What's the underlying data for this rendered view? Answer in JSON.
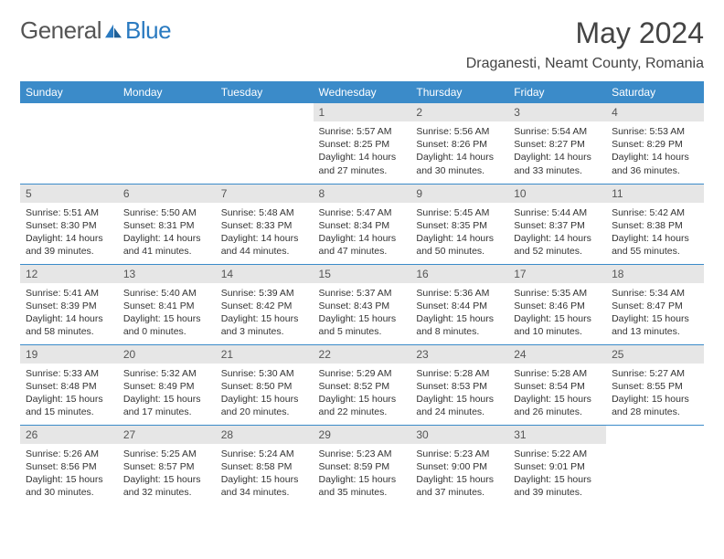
{
  "logo": {
    "text1": "General",
    "text2": "Blue"
  },
  "title": "May 2024",
  "location": "Draganesti, Neamt County, Romania",
  "colors": {
    "header_bg": "#3b8bc9",
    "daynum_bg": "#e6e6e6",
    "border": "#3b8bc9",
    "text": "#333333",
    "logo_gray": "#555555",
    "logo_blue": "#2a7ac0"
  },
  "weekdays": [
    "Sunday",
    "Monday",
    "Tuesday",
    "Wednesday",
    "Thursday",
    "Friday",
    "Saturday"
  ],
  "weeks": [
    [
      null,
      null,
      null,
      {
        "n": "1",
        "sr": "5:57 AM",
        "ss": "8:25 PM",
        "dl": "14 hours and 27 minutes."
      },
      {
        "n": "2",
        "sr": "5:56 AM",
        "ss": "8:26 PM",
        "dl": "14 hours and 30 minutes."
      },
      {
        "n": "3",
        "sr": "5:54 AM",
        "ss": "8:27 PM",
        "dl": "14 hours and 33 minutes."
      },
      {
        "n": "4",
        "sr": "5:53 AM",
        "ss": "8:29 PM",
        "dl": "14 hours and 36 minutes."
      }
    ],
    [
      {
        "n": "5",
        "sr": "5:51 AM",
        "ss": "8:30 PM",
        "dl": "14 hours and 39 minutes."
      },
      {
        "n": "6",
        "sr": "5:50 AM",
        "ss": "8:31 PM",
        "dl": "14 hours and 41 minutes."
      },
      {
        "n": "7",
        "sr": "5:48 AM",
        "ss": "8:33 PM",
        "dl": "14 hours and 44 minutes."
      },
      {
        "n": "8",
        "sr": "5:47 AM",
        "ss": "8:34 PM",
        "dl": "14 hours and 47 minutes."
      },
      {
        "n": "9",
        "sr": "5:45 AM",
        "ss": "8:35 PM",
        "dl": "14 hours and 50 minutes."
      },
      {
        "n": "10",
        "sr": "5:44 AM",
        "ss": "8:37 PM",
        "dl": "14 hours and 52 minutes."
      },
      {
        "n": "11",
        "sr": "5:42 AM",
        "ss": "8:38 PM",
        "dl": "14 hours and 55 minutes."
      }
    ],
    [
      {
        "n": "12",
        "sr": "5:41 AM",
        "ss": "8:39 PM",
        "dl": "14 hours and 58 minutes."
      },
      {
        "n": "13",
        "sr": "5:40 AM",
        "ss": "8:41 PM",
        "dl": "15 hours and 0 minutes."
      },
      {
        "n": "14",
        "sr": "5:39 AM",
        "ss": "8:42 PM",
        "dl": "15 hours and 3 minutes."
      },
      {
        "n": "15",
        "sr": "5:37 AM",
        "ss": "8:43 PM",
        "dl": "15 hours and 5 minutes."
      },
      {
        "n": "16",
        "sr": "5:36 AM",
        "ss": "8:44 PM",
        "dl": "15 hours and 8 minutes."
      },
      {
        "n": "17",
        "sr": "5:35 AM",
        "ss": "8:46 PM",
        "dl": "15 hours and 10 minutes."
      },
      {
        "n": "18",
        "sr": "5:34 AM",
        "ss": "8:47 PM",
        "dl": "15 hours and 13 minutes."
      }
    ],
    [
      {
        "n": "19",
        "sr": "5:33 AM",
        "ss": "8:48 PM",
        "dl": "15 hours and 15 minutes."
      },
      {
        "n": "20",
        "sr": "5:32 AM",
        "ss": "8:49 PM",
        "dl": "15 hours and 17 minutes."
      },
      {
        "n": "21",
        "sr": "5:30 AM",
        "ss": "8:50 PM",
        "dl": "15 hours and 20 minutes."
      },
      {
        "n": "22",
        "sr": "5:29 AM",
        "ss": "8:52 PM",
        "dl": "15 hours and 22 minutes."
      },
      {
        "n": "23",
        "sr": "5:28 AM",
        "ss": "8:53 PM",
        "dl": "15 hours and 24 minutes."
      },
      {
        "n": "24",
        "sr": "5:28 AM",
        "ss": "8:54 PM",
        "dl": "15 hours and 26 minutes."
      },
      {
        "n": "25",
        "sr": "5:27 AM",
        "ss": "8:55 PM",
        "dl": "15 hours and 28 minutes."
      }
    ],
    [
      {
        "n": "26",
        "sr": "5:26 AM",
        "ss": "8:56 PM",
        "dl": "15 hours and 30 minutes."
      },
      {
        "n": "27",
        "sr": "5:25 AM",
        "ss": "8:57 PM",
        "dl": "15 hours and 32 minutes."
      },
      {
        "n": "28",
        "sr": "5:24 AM",
        "ss": "8:58 PM",
        "dl": "15 hours and 34 minutes."
      },
      {
        "n": "29",
        "sr": "5:23 AM",
        "ss": "8:59 PM",
        "dl": "15 hours and 35 minutes."
      },
      {
        "n": "30",
        "sr": "5:23 AM",
        "ss": "9:00 PM",
        "dl": "15 hours and 37 minutes."
      },
      {
        "n": "31",
        "sr": "5:22 AM",
        "ss": "9:01 PM",
        "dl": "15 hours and 39 minutes."
      },
      null
    ]
  ],
  "labels": {
    "sunrise": "Sunrise:",
    "sunset": "Sunset:",
    "daylight": "Daylight:"
  }
}
